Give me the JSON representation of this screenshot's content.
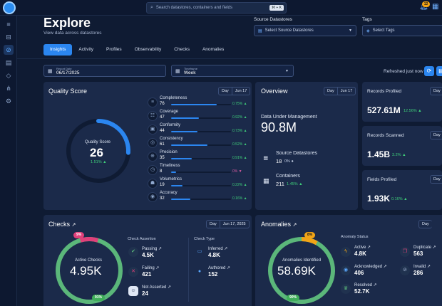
{
  "topbar": {
    "search_placeholder": "Search datastores, containers and fields",
    "search_kbd": "⌘ + K",
    "notifications_count": "12"
  },
  "sidebar": {
    "items": [
      "database-icon",
      "datastore-icon",
      "explore-icon",
      "clipboard-icon",
      "tag-icon",
      "hierarchy-icon",
      "settings-icon"
    ],
    "active": "explore-icon"
  },
  "header": {
    "title": "Explore",
    "subtitle": "View data across datastores",
    "source_label": "Source Datastores",
    "source_placeholder": "Select Source Datastores",
    "tags_label": "Tags",
    "tags_placeholder": "Select Tags"
  },
  "tabs": [
    "Insights",
    "Activity",
    "Profiles",
    "Observability",
    "Checks",
    "Anomalies"
  ],
  "filters": {
    "report_date_label": "Report Date",
    "report_date_value": "06/17/2025",
    "timeframe_label": "Timeframe",
    "timeframe_value": "Week",
    "refreshed_text": "Refreshed just now"
  },
  "quality": {
    "title": "Quality Score",
    "day": "Day",
    "date": "Jun 17",
    "score_label": "Quality Score",
    "score": "26",
    "score_change": "1.51% ▲",
    "score_fraction": 0.26,
    "metrics": [
      {
        "name": "Completeness",
        "value": "76",
        "pct": "0.75% ▲",
        "fill": 0.76,
        "dir": "up",
        "icon": "list-icon"
      },
      {
        "name": "Coverage",
        "value": "47",
        "pct": "0.92% ▲",
        "fill": 0.47,
        "dir": "up",
        "icon": "coverage-icon"
      },
      {
        "name": "Conformity",
        "value": "44",
        "pct": "0.73% ▲",
        "fill": 0.44,
        "dir": "up",
        "icon": "conformity-icon"
      },
      {
        "name": "Consistency",
        "value": "61",
        "pct": "0.52% ▲",
        "fill": 0.61,
        "dir": "up",
        "icon": "consistency-icon"
      },
      {
        "name": "Precision",
        "value": "35",
        "pct": "0.91% ▲",
        "fill": 0.35,
        "dir": "up",
        "icon": "target-icon"
      },
      {
        "name": "Timeliness",
        "value": "8",
        "pct": "0% ▼",
        "fill": 0.08,
        "dir": "down",
        "icon": "clock-icon"
      },
      {
        "name": "Volumetrics",
        "value": "19",
        "pct": "0.22% ▲",
        "fill": 0.19,
        "dir": "up",
        "icon": "volume-icon"
      },
      {
        "name": "Accuracy",
        "value": "32",
        "pct": "0.16% ▲",
        "fill": 0.32,
        "dir": "up",
        "icon": "accuracy-icon"
      }
    ]
  },
  "overview": {
    "title": "Overview",
    "day": "Day",
    "date": "Jun 17",
    "dum_label": "Data Under Management",
    "dum_value": "90.8M",
    "source_label": "Source Datastores",
    "source_value": "18",
    "source_change": "0% ●",
    "containers_label": "Containers",
    "containers_value": "211",
    "containers_change": "1.45% ▲"
  },
  "records": [
    {
      "title": "Records Profiled",
      "value": "527.61M",
      "change": "12.56% ▲",
      "day": "Day"
    },
    {
      "title": "Records Scanned",
      "value": "1.45B",
      "change": "3.2% ▲",
      "day": "Day"
    },
    {
      "title": "Fields Profiled",
      "value": "1.93K",
      "change": "0.16% ▲",
      "day": "Day"
    }
  ],
  "checks": {
    "title": "Checks",
    "day": "Day",
    "date": "Jun 17, 2025",
    "center_label": "Active Checks",
    "center_value": "4.95K",
    "badge_top": "9%",
    "badge_bottom": "91%",
    "failing_fraction": 0.09,
    "assertion_head": "Check Assertion",
    "type_head": "Check Type",
    "passing_label": "Passing ↗",
    "passing_value": "4.5K",
    "failing_label": "Failing ↗",
    "failing_value": "421",
    "not_asserted_label": "Not Asserted ↗",
    "not_asserted_value": "24",
    "inferred_label": "Inferred ↗",
    "inferred_value": "4.8K",
    "authored_label": "Authored ↗",
    "authored_value": "152"
  },
  "anomalies": {
    "title": "Anomalies",
    "day": "Day",
    "center_label": "Anomalies Identified",
    "center_value": "58.69K",
    "badge_top": "8%",
    "badge_bottom": "90%",
    "active_fraction": 0.08,
    "status_head": "Anomaly Status",
    "active_label": "Active ↗",
    "active_value": "4.8K",
    "ack_label": "Acknowledged ↗",
    "ack_value": "406",
    "resolved_label": "Resolved ↗",
    "resolved_value": "52.7K",
    "duplicate_label": "Duplicate ↗",
    "duplicate_value": "563",
    "invalid_label": "Invalid ↗",
    "invalid_value": "286"
  },
  "colors": {
    "accent": "#2b86f0",
    "positive": "#3fcf7a",
    "negative": "#d85aa0",
    "warning": "#f2a416",
    "ring_green": "#5bb77a",
    "ring_pink": "#e0407a",
    "card_bg": "#1b2a4a",
    "page_bg": "#0f1b33"
  }
}
